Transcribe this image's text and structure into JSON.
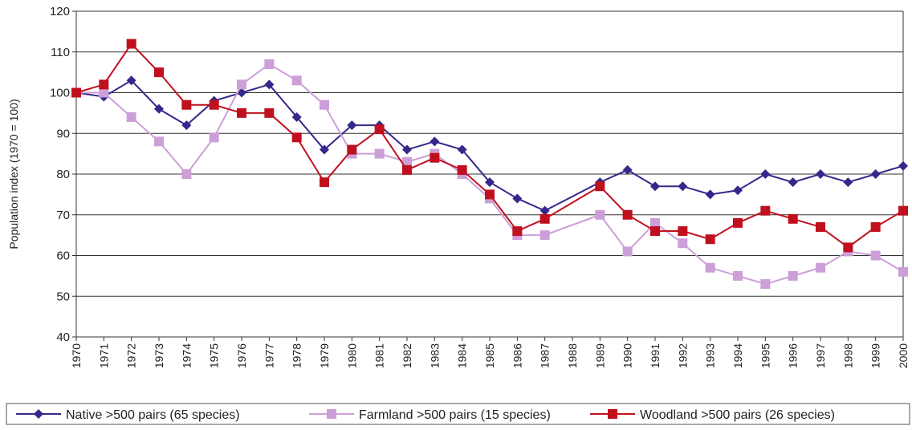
{
  "chart_data": {
    "type": "line",
    "y_label": "Population index (1970 = 100)",
    "x": [
      1970,
      1971,
      1972,
      1973,
      1974,
      1975,
      1976,
      1977,
      1978,
      1979,
      1980,
      1981,
      1982,
      1983,
      1984,
      1985,
      1986,
      1987,
      1989,
      1990,
      1991,
      1992,
      1993,
      1994,
      1995,
      1996,
      1997,
      1998,
      1999,
      2000
    ],
    "xlim": [
      1970,
      2000
    ],
    "xticks": [
      1970,
      1971,
      1972,
      1973,
      1974,
      1975,
      1976,
      1977,
      1978,
      1979,
      1980,
      1981,
      1982,
      1983,
      1984,
      1985,
      1986,
      1987,
      1988,
      1989,
      1990,
      1991,
      1992,
      1993,
      1994,
      1995,
      1996,
      1997,
      1998,
      1999,
      2000
    ],
    "ylim": [
      40,
      120
    ],
    "yticks": [
      40,
      50,
      60,
      70,
      80,
      90,
      100,
      110,
      120
    ],
    "grid": true,
    "legend": "bottom",
    "series": [
      {
        "name": "Native >500 pairs (65 species)",
        "color": "#35288a",
        "marker": "diamond",
        "values": [
          100,
          99,
          103,
          96,
          92,
          98,
          100,
          102,
          94,
          86,
          92,
          92,
          86,
          88,
          86,
          78,
          74,
          71,
          78,
          81,
          77,
          77,
          75,
          76,
          80,
          78,
          80,
          78,
          80,
          82
        ]
      },
      {
        "name": "Farmland >500 pairs (15 species)",
        "color": "#cc9fd8",
        "marker": "square",
        "values": [
          100,
          100,
          94,
          88,
          80,
          89,
          102,
          107,
          103,
          97,
          85,
          85,
          83,
          85,
          80,
          74,
          65,
          65,
          70,
          61,
          68,
          63,
          57,
          55,
          53,
          55,
          57,
          61,
          60,
          56
        ]
      },
      {
        "name": "Woodland >500 pairs (26 species)",
        "color": "#c0101e",
        "marker": "square",
        "values": [
          100,
          102,
          112,
          105,
          97,
          97,
          95,
          95,
          89,
          78,
          86,
          91,
          81,
          84,
          81,
          75,
          66,
          69,
          77,
          70,
          66,
          66,
          64,
          68,
          71,
          69,
          67,
          62,
          67,
          71
        ]
      }
    ]
  }
}
